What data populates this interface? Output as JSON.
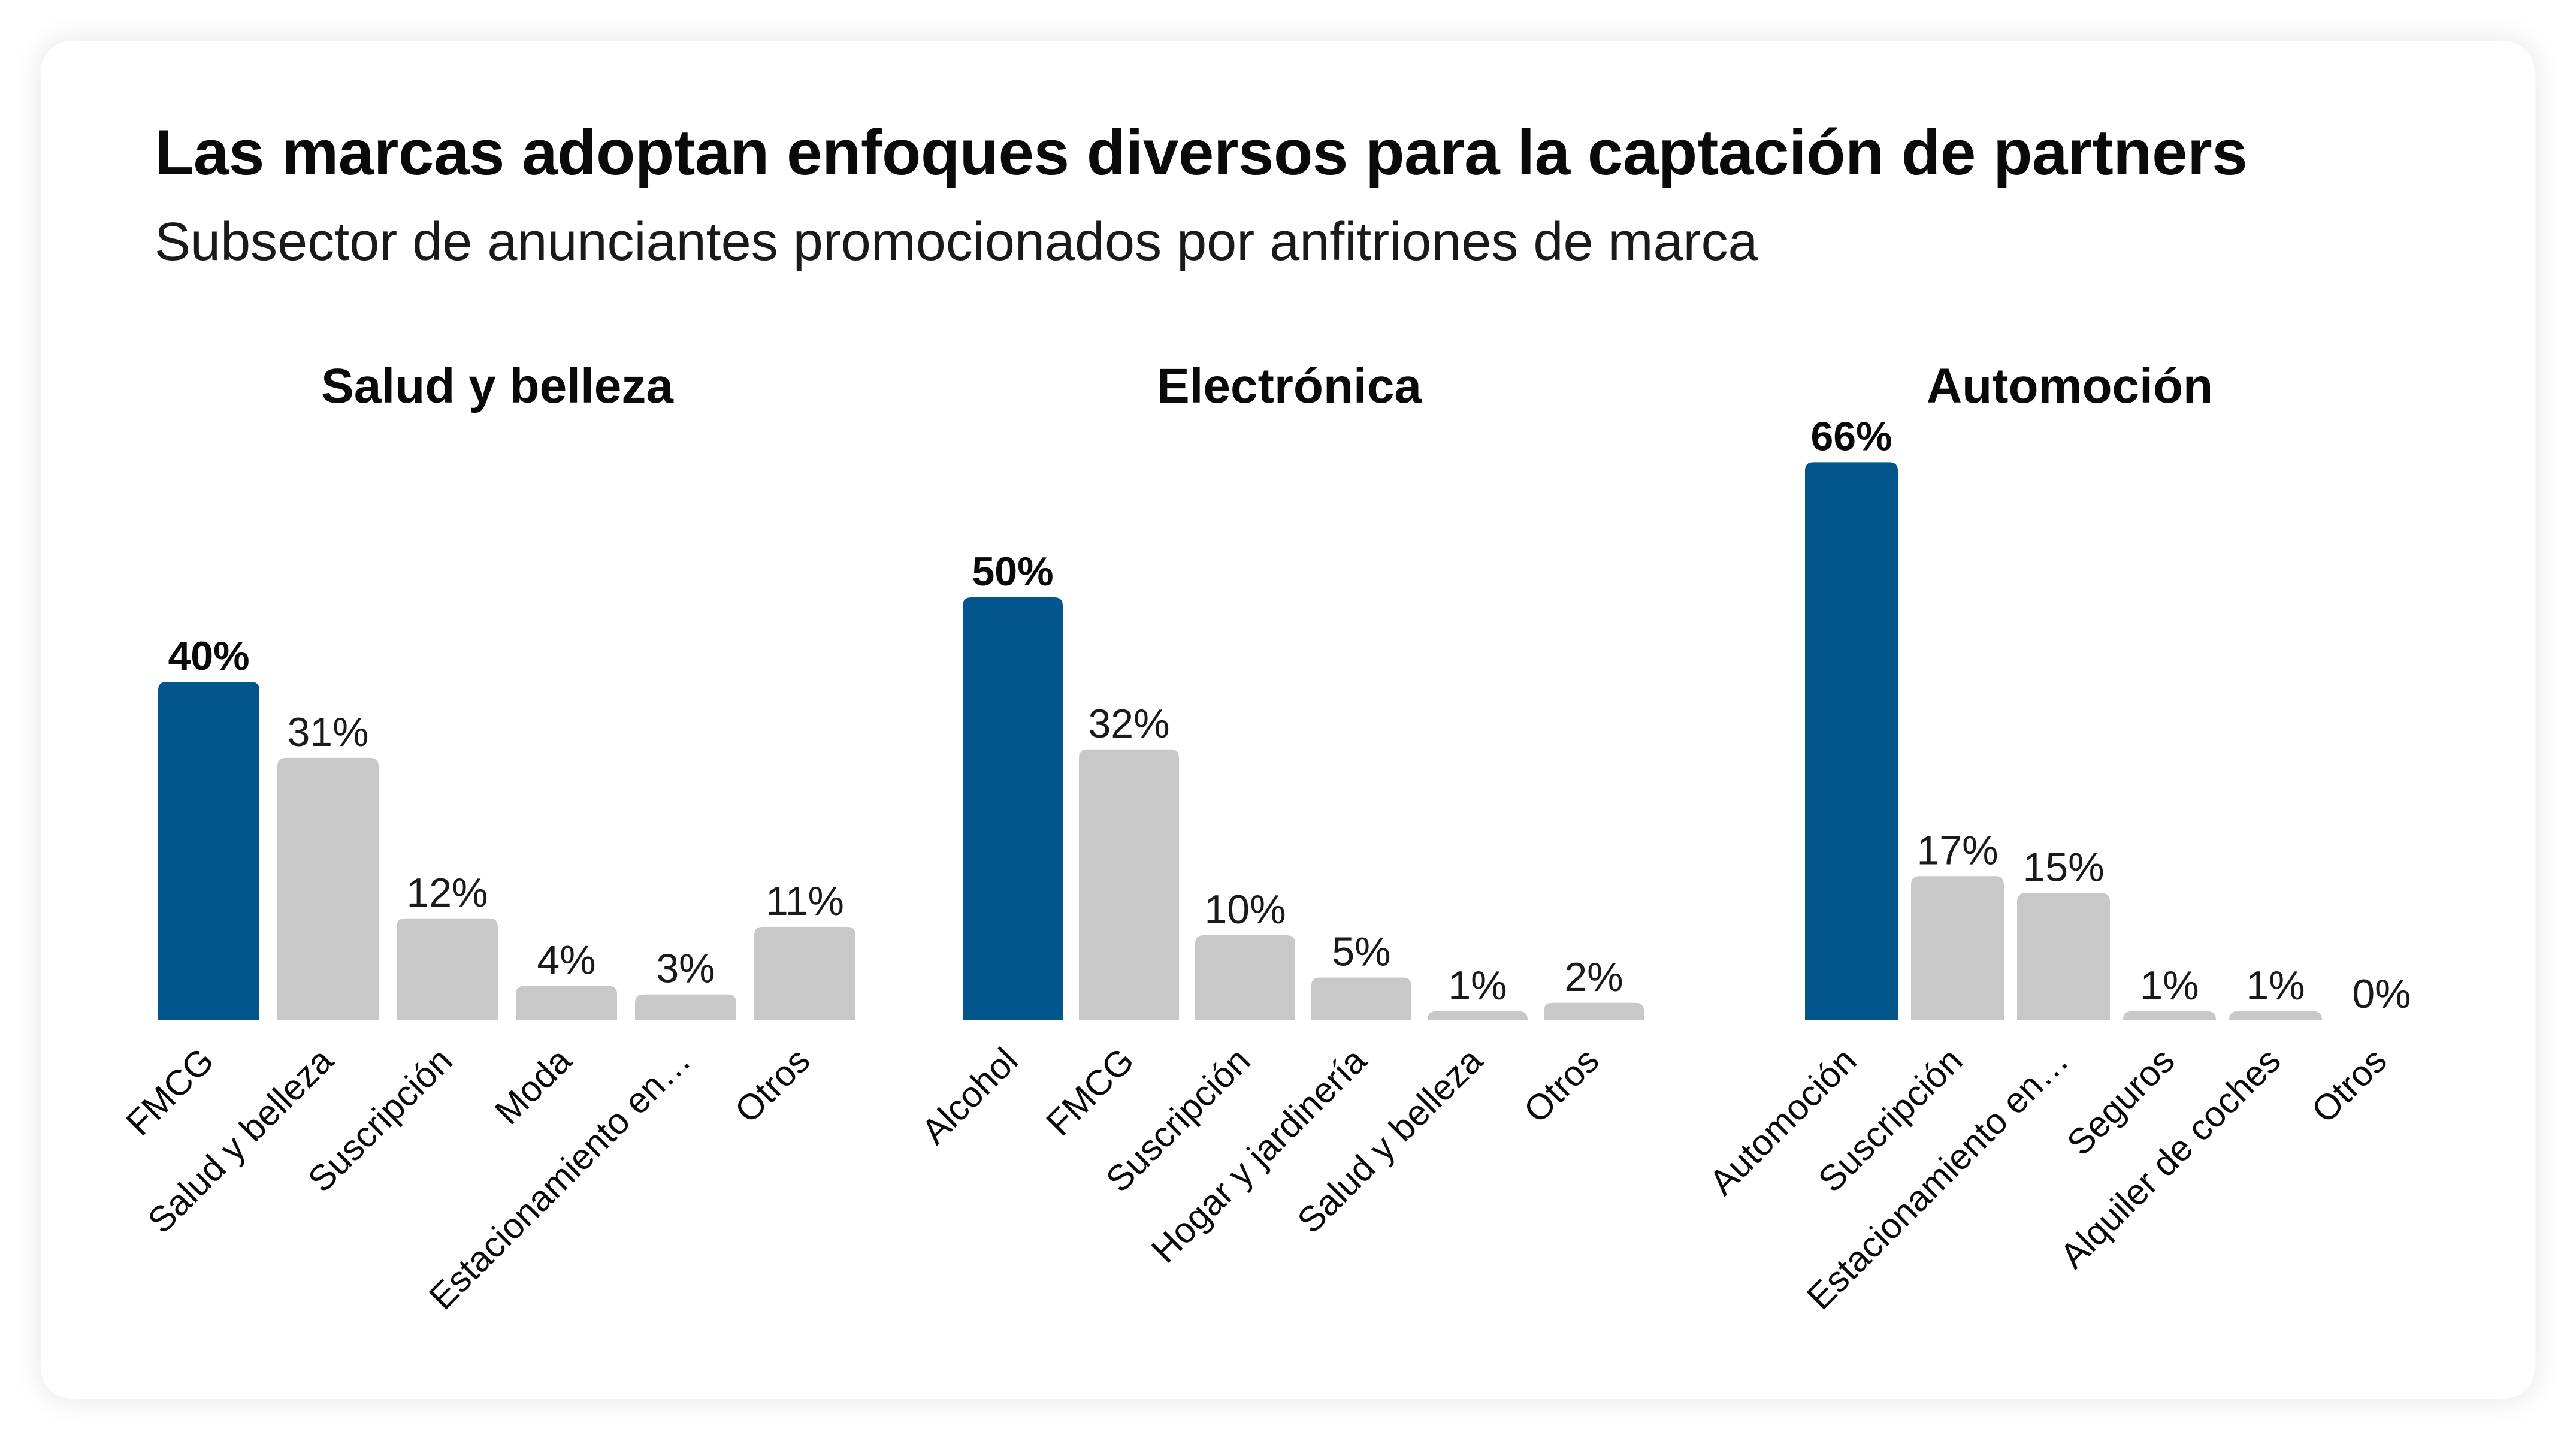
{
  "header": {
    "title": "Las marcas adoptan enfoques diversos para la captación de partners",
    "subtitle": "Subsector de anunciantes promocionados por anfitriones de marca"
  },
  "colors": {
    "highlight": "#02568B",
    "default": "#C8C8C8",
    "text": "#0A0A0A"
  },
  "chart_data": [
    {
      "type": "bar",
      "title": "Salud y belleza",
      "categories": [
        "FMCG",
        "Salud y belleza",
        "Suscripción",
        "Moda",
        "Estacionamiento en…",
        "Otros"
      ],
      "values": [
        40,
        31,
        12,
        4,
        3,
        11
      ],
      "labels": [
        "40%",
        "31%",
        "12%",
        "4%",
        "3%",
        "11%"
      ],
      "highlight_index": 0,
      "xlabel": "",
      "ylabel": "",
      "unit": "%",
      "ylim": [
        0,
        66
      ],
      "grid": false,
      "legend": "none"
    },
    {
      "type": "bar",
      "title": "Electrónica",
      "categories": [
        "Alcohol",
        "FMCG",
        "Suscripción",
        "Hogar y jardinería",
        "Salud y belleza",
        "Otros"
      ],
      "values": [
        50,
        32,
        10,
        5,
        1,
        2
      ],
      "labels": [
        "50%",
        "32%",
        "10%",
        "5%",
        "1%",
        "2%"
      ],
      "highlight_index": 0,
      "xlabel": "",
      "ylabel": "",
      "unit": "%",
      "ylim": [
        0,
        66
      ],
      "grid": false,
      "legend": "none"
    },
    {
      "type": "bar",
      "title": "Automoción",
      "categories": [
        "Automoción",
        "Suscripción",
        "Estacionamiento en…",
        "Seguros",
        "Alquiler de coches",
        "Otros"
      ],
      "values": [
        66,
        17,
        15,
        1,
        1,
        0
      ],
      "labels": [
        "66%",
        "17%",
        "15%",
        "1%",
        "1%",
        "0%"
      ],
      "highlight_index": 0,
      "xlabel": "",
      "ylabel": "",
      "unit": "%",
      "ylim": [
        0,
        66
      ],
      "grid": false,
      "legend": "none"
    }
  ]
}
